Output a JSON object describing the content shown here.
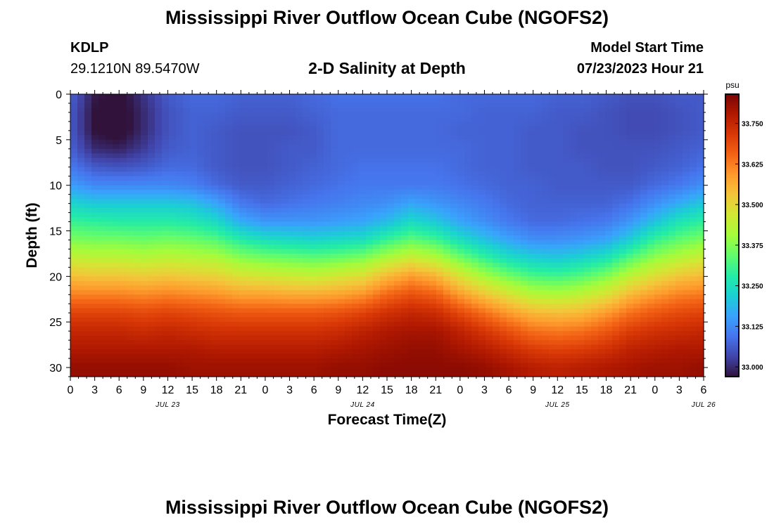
{
  "header": {
    "title": "Mississippi River Outflow Ocean Cube (NGOFS2)",
    "station_id": "KDLP",
    "station_coords": "29.1210N  89.5470W",
    "subtitle": "2-D Salinity at Depth",
    "model_start_label": "Model Start Time",
    "model_start_value": "07/23/2023 Hour 21"
  },
  "footer": {
    "title": "Mississippi River Outflow Ocean Cube (NGOFS2)"
  },
  "chart_data": {
    "type": "heatmap",
    "title": "2-D Salinity at Depth",
    "xlabel": "Forecast Time(Z)",
    "ylabel": "Depth (ft)",
    "x_hours": [
      0,
      3,
      6,
      9,
      12,
      15,
      18,
      21,
      24,
      27,
      30,
      33,
      36,
      39,
      42,
      45,
      48,
      51,
      54,
      57,
      60,
      63,
      66,
      69,
      72,
      75,
      78,
      81
    ],
    "x_tick_labels": [
      "0",
      "3",
      "6",
      "9",
      "12",
      "15",
      "18",
      "21",
      "0",
      "3",
      "6",
      "9",
      "12",
      "15",
      "18",
      "21",
      "0",
      "3",
      "6",
      "9",
      "12",
      "15",
      "18",
      "21",
      "0",
      "3",
      "6"
    ],
    "x_date_labels": [
      {
        "label": "JUL 23",
        "hour": 12
      },
      {
        "label": "JUL 24",
        "hour": 36
      },
      {
        "label": "JUL 25",
        "hour": 60
      },
      {
        "label": "JUL 26",
        "hour": 78
      }
    ],
    "x_range": [
      0,
      78
    ],
    "y_ticks": [
      0,
      5,
      10,
      15,
      20,
      25,
      30
    ],
    "y_tick_labels": [
      "0",
      "5",
      "10",
      "15",
      "20",
      "25",
      "30"
    ],
    "y_range": [
      0,
      31
    ],
    "y_inverted": true,
    "depths_ft": [
      0,
      2,
      4,
      6,
      8,
      10,
      12,
      14,
      16,
      18,
      20,
      22,
      24,
      26,
      28,
      30
    ],
    "values": [
      [
        33.07,
        32.98,
        32.96,
        33.01,
        33.06,
        33.08,
        33.08,
        33.07,
        33.07,
        33.07,
        33.08,
        33.09,
        33.09,
        33.09,
        33.09,
        33.09,
        33.08,
        33.08,
        33.08,
        33.08,
        33.07,
        33.07,
        33.06,
        33.05,
        33.05,
        33.06,
        33.06,
        33.07
      ],
      [
        33.06,
        32.97,
        32.95,
        33.0,
        33.05,
        33.07,
        33.07,
        33.06,
        33.06,
        33.06,
        33.07,
        33.08,
        33.08,
        33.08,
        33.08,
        33.08,
        33.08,
        33.07,
        33.07,
        33.07,
        33.06,
        33.06,
        33.05,
        33.04,
        33.04,
        33.05,
        33.06,
        33.07
      ],
      [
        33.06,
        32.97,
        32.95,
        33.0,
        33.05,
        33.07,
        33.06,
        33.05,
        33.05,
        33.05,
        33.06,
        33.08,
        33.08,
        33.08,
        33.08,
        33.08,
        33.07,
        33.07,
        33.07,
        33.06,
        33.06,
        33.05,
        33.05,
        33.04,
        33.04,
        33.05,
        33.06,
        33.07
      ],
      [
        33.07,
        33.0,
        32.99,
        33.02,
        33.06,
        33.07,
        33.06,
        33.05,
        33.05,
        33.06,
        33.06,
        33.08,
        33.08,
        33.08,
        33.08,
        33.08,
        33.08,
        33.07,
        33.07,
        33.06,
        33.06,
        33.05,
        33.05,
        33.05,
        33.05,
        33.06,
        33.07,
        33.08
      ],
      [
        33.1,
        33.06,
        33.05,
        33.06,
        33.08,
        33.08,
        33.06,
        33.05,
        33.05,
        33.06,
        33.07,
        33.08,
        33.09,
        33.09,
        33.09,
        33.09,
        33.08,
        33.07,
        33.07,
        33.06,
        33.06,
        33.06,
        33.05,
        33.05,
        33.06,
        33.07,
        33.09,
        33.1
      ],
      [
        33.15,
        33.12,
        33.12,
        33.12,
        33.12,
        33.11,
        33.08,
        33.06,
        33.06,
        33.07,
        33.08,
        33.09,
        33.1,
        33.1,
        33.1,
        33.1,
        33.09,
        33.08,
        33.07,
        33.07,
        33.06,
        33.06,
        33.06,
        33.06,
        33.08,
        33.1,
        33.13,
        33.16
      ],
      [
        33.23,
        33.21,
        33.21,
        33.21,
        33.21,
        33.2,
        33.16,
        33.1,
        33.08,
        33.09,
        33.1,
        33.11,
        33.12,
        33.13,
        33.16,
        33.14,
        33.12,
        33.1,
        33.08,
        33.07,
        33.07,
        33.07,
        33.07,
        33.09,
        33.13,
        33.17,
        33.21,
        33.24
      ],
      [
        33.3,
        33.29,
        33.28,
        33.28,
        33.28,
        33.27,
        33.24,
        33.17,
        33.14,
        33.14,
        33.14,
        33.15,
        33.16,
        33.19,
        33.24,
        33.21,
        33.16,
        33.13,
        33.1,
        33.08,
        33.08,
        33.09,
        33.1,
        33.14,
        33.2,
        33.26,
        33.29,
        33.31
      ],
      [
        33.37,
        33.36,
        33.36,
        33.35,
        33.36,
        33.35,
        33.33,
        33.28,
        33.25,
        33.24,
        33.23,
        33.24,
        33.25,
        33.3,
        33.34,
        33.31,
        33.25,
        33.2,
        33.16,
        33.13,
        33.13,
        33.14,
        33.16,
        33.22,
        33.3,
        33.34,
        33.37,
        33.39
      ],
      [
        33.45,
        33.44,
        33.44,
        33.43,
        33.44,
        33.43,
        33.42,
        33.38,
        33.36,
        33.35,
        33.34,
        33.35,
        33.37,
        33.42,
        33.46,
        33.43,
        33.36,
        33.3,
        33.25,
        33.22,
        33.21,
        33.23,
        33.26,
        33.33,
        33.39,
        33.43,
        33.46,
        33.47
      ],
      [
        33.54,
        33.53,
        33.53,
        33.52,
        33.53,
        33.52,
        33.51,
        33.48,
        33.47,
        33.46,
        33.45,
        33.47,
        33.49,
        33.55,
        33.59,
        33.56,
        33.48,
        33.41,
        33.36,
        33.32,
        33.31,
        33.33,
        33.37,
        33.44,
        33.49,
        33.53,
        33.55,
        33.56
      ],
      [
        33.62,
        33.62,
        33.62,
        33.61,
        33.62,
        33.61,
        33.6,
        33.58,
        33.58,
        33.57,
        33.57,
        33.58,
        33.6,
        33.65,
        33.68,
        33.66,
        33.59,
        33.53,
        33.48,
        33.43,
        33.42,
        33.44,
        33.48,
        33.55,
        33.59,
        33.62,
        33.63,
        33.64
      ],
      [
        33.7,
        33.7,
        33.7,
        33.69,
        33.7,
        33.69,
        33.68,
        33.67,
        33.67,
        33.67,
        33.67,
        33.68,
        33.7,
        33.73,
        33.75,
        33.74,
        33.69,
        33.64,
        33.59,
        33.55,
        33.54,
        33.55,
        33.59,
        33.64,
        33.67,
        33.69,
        33.7,
        33.71
      ],
      [
        33.75,
        33.75,
        33.75,
        33.74,
        33.75,
        33.74,
        33.73,
        33.73,
        33.73,
        33.73,
        33.73,
        33.74,
        33.76,
        33.78,
        33.79,
        33.79,
        33.76,
        33.72,
        33.68,
        33.64,
        33.63,
        33.64,
        33.67,
        33.71,
        33.73,
        33.74,
        33.75,
        33.76
      ],
      [
        33.78,
        33.78,
        33.78,
        33.78,
        33.78,
        33.78,
        33.77,
        33.77,
        33.77,
        33.77,
        33.77,
        33.78,
        33.79,
        33.8,
        33.81,
        33.81,
        33.79,
        33.77,
        33.74,
        33.71,
        33.7,
        33.71,
        33.73,
        33.76,
        33.77,
        33.78,
        33.78,
        33.79
      ],
      [
        33.81,
        33.81,
        33.81,
        33.81,
        33.81,
        33.8,
        33.8,
        33.8,
        33.8,
        33.8,
        33.8,
        33.81,
        33.81,
        33.82,
        33.82,
        33.82,
        33.82,
        33.81,
        33.79,
        33.77,
        33.76,
        33.77,
        33.78,
        33.79,
        33.8,
        33.8,
        33.81,
        33.82
      ]
    ],
    "colorbar": {
      "unit": "psu",
      "range": [
        32.97,
        33.84
      ],
      "ticks": [
        33.0,
        33.125,
        33.25,
        33.375,
        33.5,
        33.625,
        33.75
      ],
      "tick_labels": [
        "33.000",
        "33.125",
        "33.250",
        "33.375",
        "33.500",
        "33.625",
        "33.750"
      ],
      "colormap": [
        "#30123b",
        "#4145ab",
        "#4675ed",
        "#39a2fc",
        "#1bcfd4",
        "#24eca6",
        "#61fc6c",
        "#a4fc3b",
        "#d1e834",
        "#f3c63a",
        "#fe9b2d",
        "#f36315",
        "#d93806",
        "#b11901",
        "#7a0402"
      ]
    }
  }
}
